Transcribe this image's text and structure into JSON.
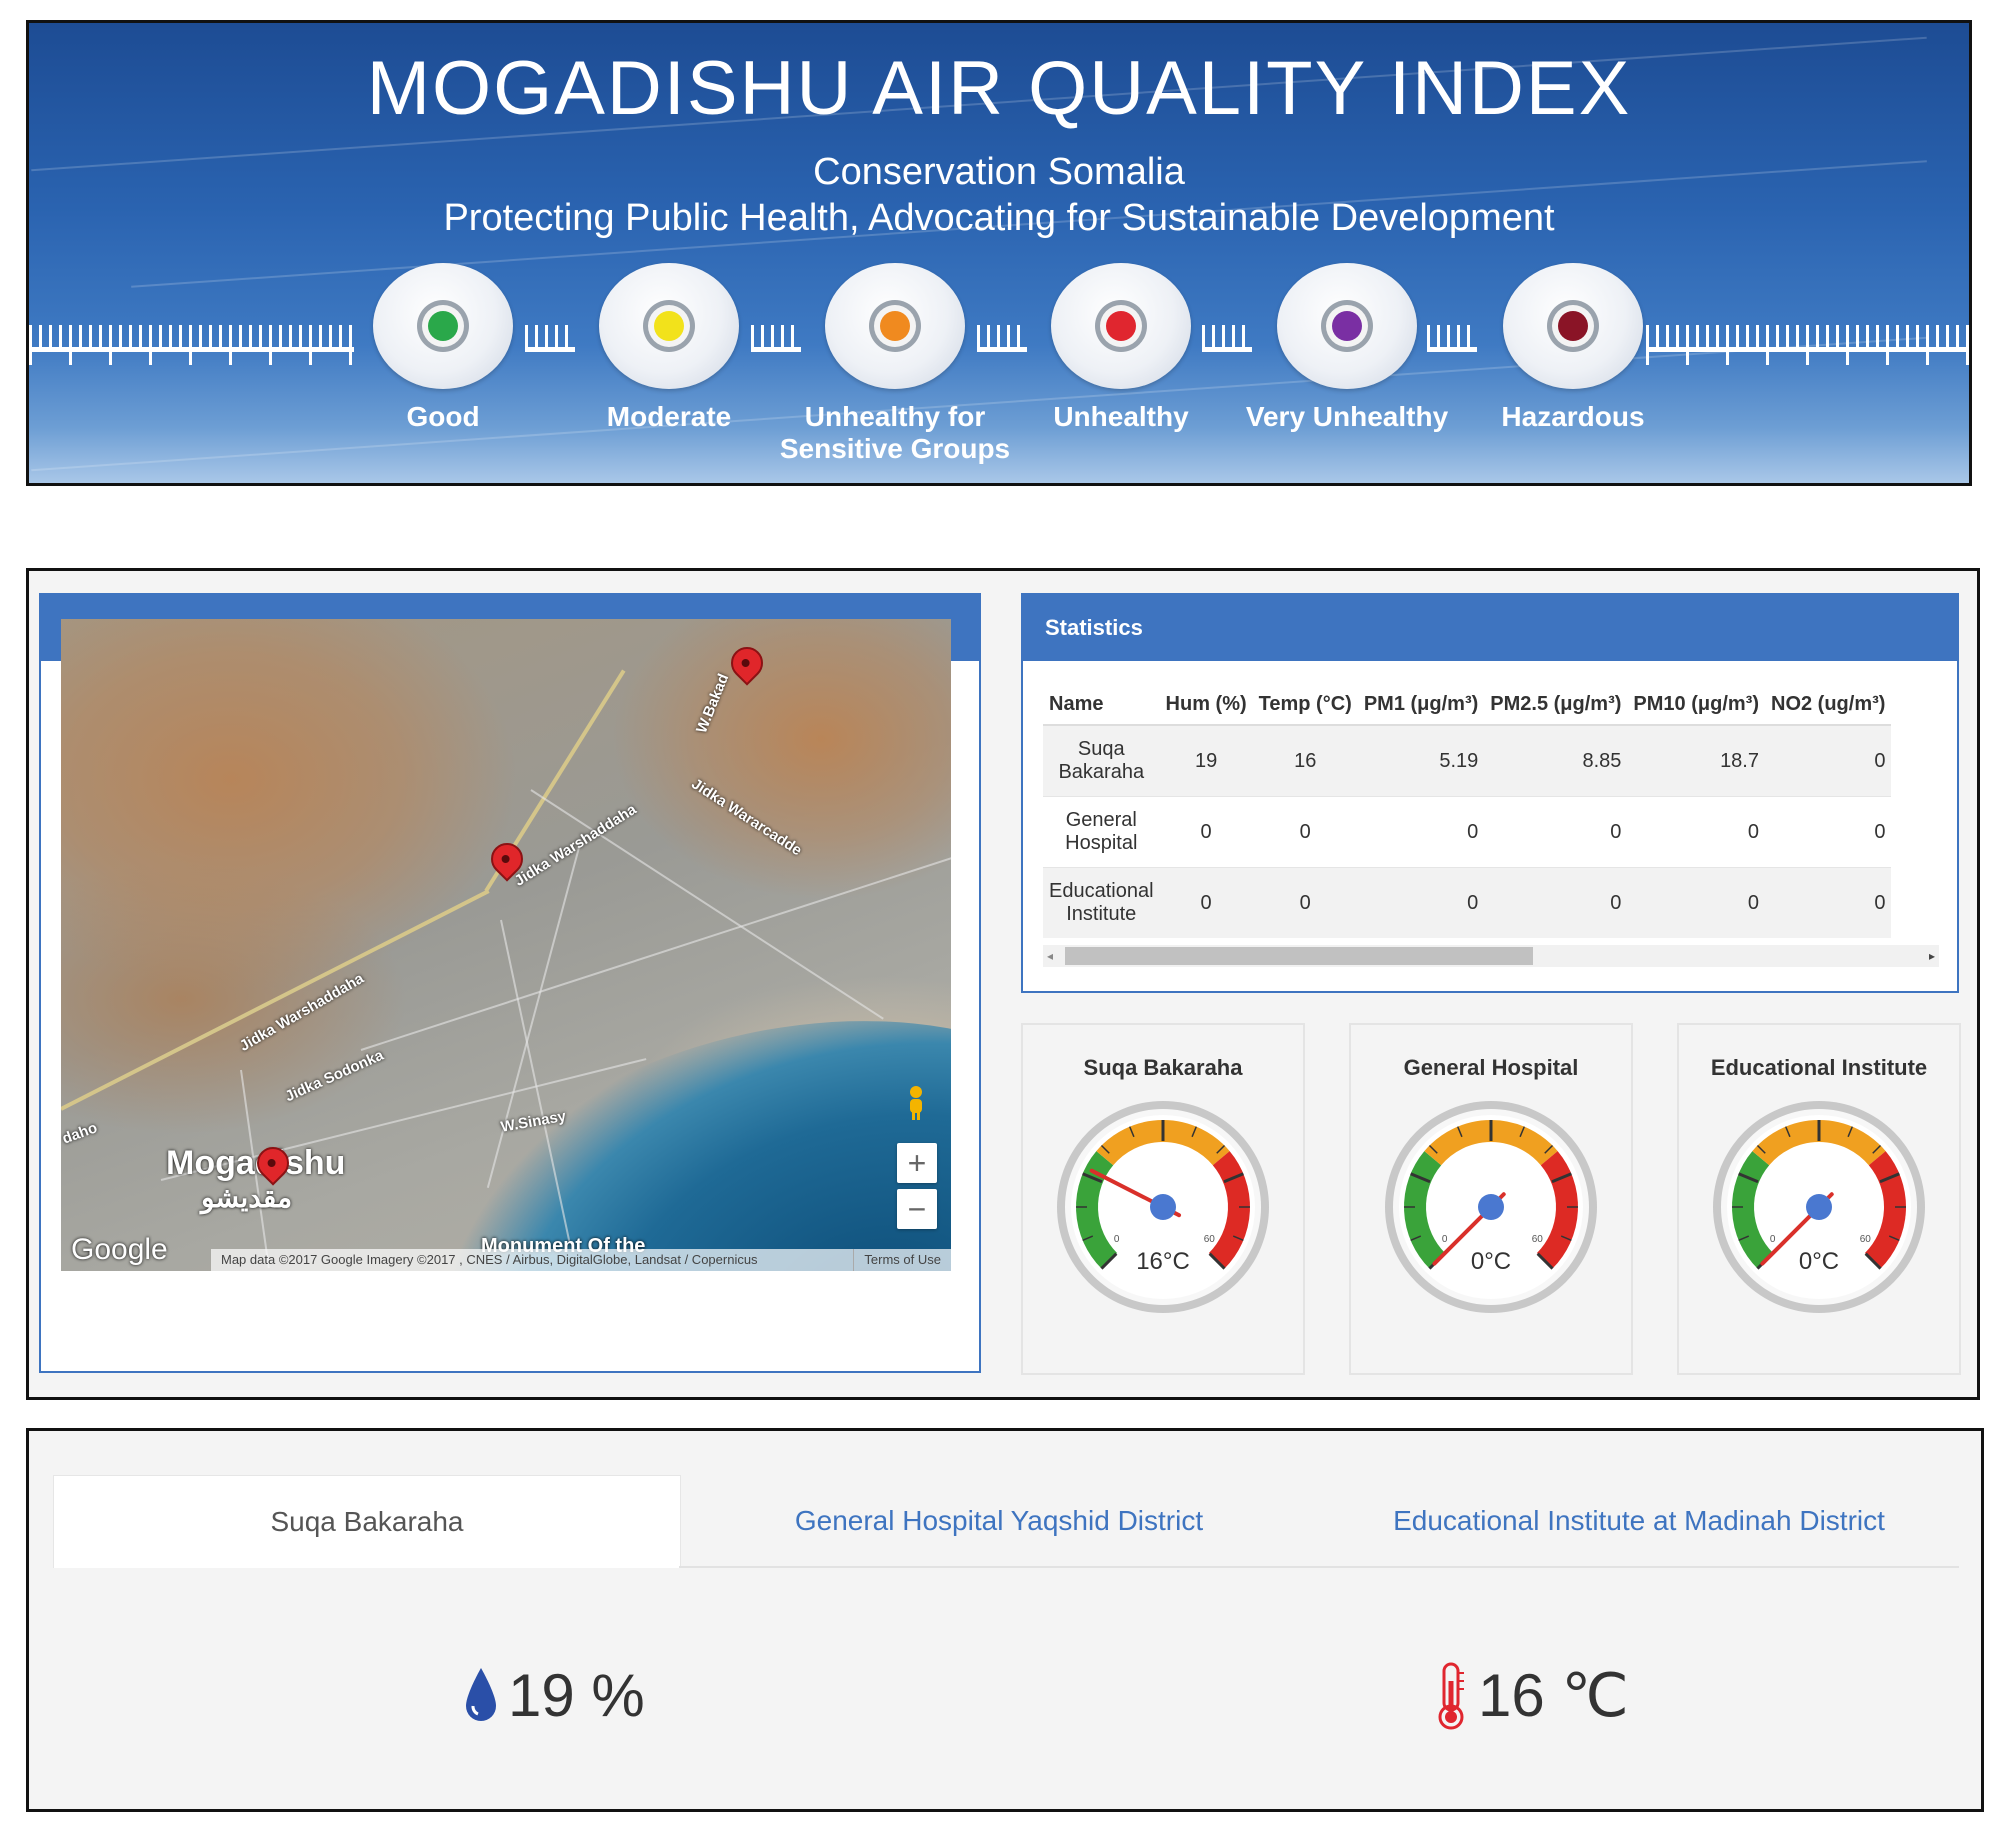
{
  "banner": {
    "title": "MOGADISHU AIR QUALITY INDEX",
    "org": "Conservation Somalia",
    "tagline": "Protecting Public Health, Advocating for Sustainable Development",
    "levels": [
      {
        "label": "Good",
        "color": "#2aa84a"
      },
      {
        "label": "Moderate",
        "color": "#f2e21b"
      },
      {
        "label": "Unhealthy for Sensitive Groups",
        "color": "#f08a1f"
      },
      {
        "label": "Unhealthy",
        "color": "#e0262f"
      },
      {
        "label": "Very Unhealthy",
        "color": "#7a2fa3"
      },
      {
        "label": "Hazardous",
        "color": "#8a1426"
      }
    ]
  },
  "map_panel": {
    "title": "Map",
    "labels": {
      "road1": "W.Bakad",
      "road2": "Jidka Warshaddaha",
      "road3": "Jidka Warshaddaha",
      "road4": "Jidka Wararcadde",
      "road5": "Jidka Sodonka",
      "road6": "W.Sinasy",
      "road7": "daho",
      "city": "Mogadishu",
      "city_ar": "مقديشو",
      "landmark": "Monument Of the",
      "google": "Google",
      "attribution": "Map data ©2017 Google Imagery ©2017 , CNES / Airbus, DigitalGlobe, Landsat / Copernicus",
      "terms": "Terms of Use",
      "zoom_in": "+",
      "zoom_out": "−"
    }
  },
  "stats_panel": {
    "title": "Statistics",
    "columns": [
      "Name",
      "Hum (%)",
      "Temp (°C)",
      "PM1 (μg/m³)",
      "PM2.5 (μg/m³)",
      "PM10 (μg/m³)",
      "NO2 (ug/m³)"
    ],
    "rows": [
      {
        "name": "Suqa Bakaraha",
        "hum": "19",
        "temp": "16",
        "pm1": "5.19",
        "pm25": "8.85",
        "pm10": "18.7",
        "no2": "0"
      },
      {
        "name": "General Hospital",
        "hum": "0",
        "temp": "0",
        "pm1": "0",
        "pm25": "0",
        "pm10": "0",
        "no2": "0"
      },
      {
        "name": "Educational Institute",
        "hum": "0",
        "temp": "0",
        "pm1": "0",
        "pm25": "0",
        "pm10": "0",
        "no2": "0"
      }
    ],
    "scroll_fraction": 0.55
  },
  "gauges": [
    {
      "title": "Suqa Bakaraha",
      "value": 16,
      "readout": "16°C",
      "min": 0,
      "max": 60,
      "min_label": "0",
      "max_label": "60"
    },
    {
      "title": "General Hospital",
      "value": 0,
      "readout": "0°C",
      "min": 0,
      "max": 60,
      "min_label": "0",
      "max_label": "60"
    },
    {
      "title": "Educational Institute",
      "value": 0,
      "readout": "0°C",
      "min": 0,
      "max": 60,
      "min_label": "0",
      "max_label": "60"
    }
  ],
  "detail": {
    "tabs": [
      "Suqa Bakaraha",
      "General Hospital Yaqshid District",
      "Educational Institute at Madinah District"
    ],
    "active_tab": 0,
    "humidity": "19 %",
    "temperature": "16 ℃",
    "humidity_icon": "water-drop-icon",
    "temperature_icon": "thermometer-icon",
    "humidity_color": "#2a4fa8",
    "temperature_color": "#e0262f"
  }
}
